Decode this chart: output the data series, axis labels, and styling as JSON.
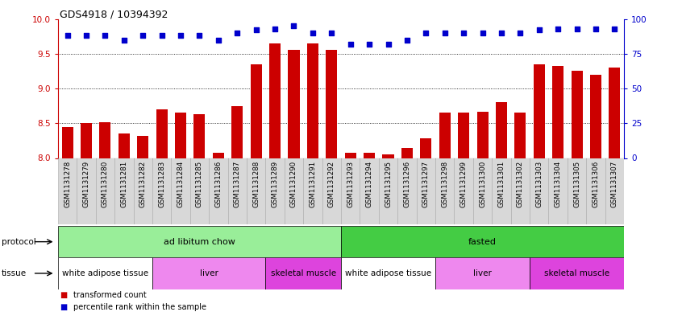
{
  "title": "GDS4918 / 10394392",
  "samples": [
    "GSM1131278",
    "GSM1131279",
    "GSM1131280",
    "GSM1131281",
    "GSM1131282",
    "GSM1131283",
    "GSM1131284",
    "GSM1131285",
    "GSM1131286",
    "GSM1131287",
    "GSM1131288",
    "GSM1131289",
    "GSM1131290",
    "GSM1131291",
    "GSM1131292",
    "GSM1131293",
    "GSM1131294",
    "GSM1131295",
    "GSM1131296",
    "GSM1131297",
    "GSM1131298",
    "GSM1131299",
    "GSM1131300",
    "GSM1131301",
    "GSM1131302",
    "GSM1131303",
    "GSM1131304",
    "GSM1131305",
    "GSM1131306",
    "GSM1131307"
  ],
  "bar_values": [
    8.45,
    8.5,
    8.52,
    8.35,
    8.32,
    8.7,
    8.65,
    8.63,
    8.08,
    8.75,
    9.35,
    9.65,
    9.55,
    9.65,
    9.56,
    8.08,
    8.08,
    8.05,
    8.15,
    8.28,
    8.65,
    8.65,
    8.67,
    8.8,
    8.65,
    9.35,
    9.32,
    9.25,
    9.2,
    9.3
  ],
  "dot_values": [
    88,
    88,
    88,
    85,
    88,
    88,
    88,
    88,
    85,
    90,
    92,
    93,
    95,
    90,
    90,
    82,
    82,
    82,
    85,
    90,
    90,
    90,
    90,
    90,
    90,
    92,
    93,
    93,
    93,
    93
  ],
  "bar_color": "#cc0000",
  "dot_color": "#0000cc",
  "ylim_left": [
    8.0,
    10.0
  ],
  "ylim_right": [
    0,
    100
  ],
  "yticks_left": [
    8.0,
    8.5,
    9.0,
    9.5,
    10.0
  ],
  "yticks_right": [
    0,
    25,
    50,
    75,
    100
  ],
  "protocol_groups": [
    {
      "label": "ad libitum chow",
      "start": 0,
      "end": 14,
      "color": "#99ee99"
    },
    {
      "label": "fasted",
      "start": 15,
      "end": 29,
      "color": "#44cc44"
    }
  ],
  "tissue_groups": [
    {
      "label": "white adipose tissue",
      "start": 0,
      "end": 4,
      "color": "#ffffff"
    },
    {
      "label": "liver",
      "start": 5,
      "end": 10,
      "color": "#ee88ee"
    },
    {
      "label": "skeletal muscle",
      "start": 11,
      "end": 14,
      "color": "#dd44dd"
    },
    {
      "label": "white adipose tissue",
      "start": 15,
      "end": 19,
      "color": "#ffffff"
    },
    {
      "label": "liver",
      "start": 20,
      "end": 24,
      "color": "#ee88ee"
    },
    {
      "label": "skeletal muscle",
      "start": 25,
      "end": 29,
      "color": "#dd44dd"
    }
  ],
  "legend_items": [
    {
      "label": "transformed count",
      "color": "#cc0000"
    },
    {
      "label": "percentile rank within the sample",
      "color": "#0000cc"
    }
  ],
  "tick_color_left": "#cc0000",
  "tick_color_right": "#0000cc",
  "sample_cell_color": "#d8d8d8",
  "dotted_lines": [
    8.5,
    9.0,
    9.5
  ]
}
